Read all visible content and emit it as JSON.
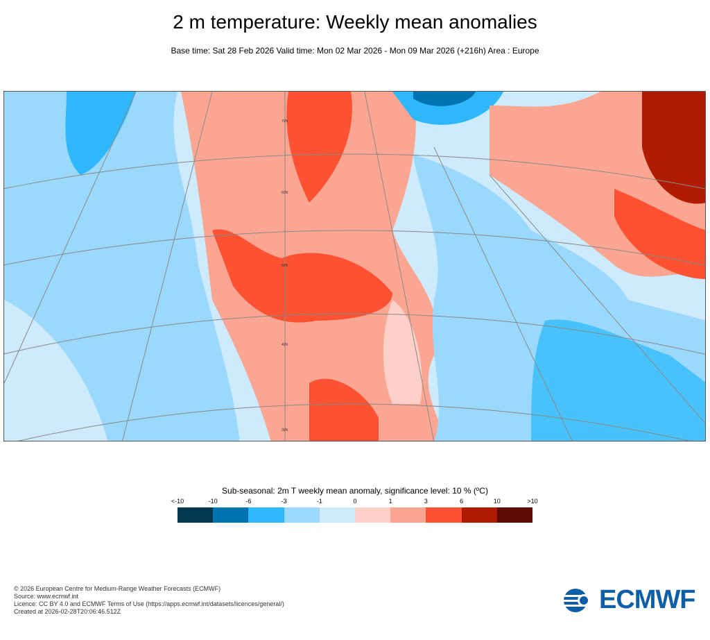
{
  "header": {
    "title": "2 m temperature: Weekly mean anomalies",
    "subtitle": "Base time: Sat 28 Feb 2026 Valid time: Mon 02 Mar 2026 - Mon 09 Mar 2026 (+216h) Area : Europe"
  },
  "map": {
    "lat_labels": [
      "70N",
      "60N",
      "50N",
      "40N",
      "30N"
    ]
  },
  "legend": {
    "title": "Sub-seasonal: 2m T weekly mean anomaly, significance level: 10 % (ºC)",
    "ticks": [
      "<-10",
      "-10",
      "-6",
      "-3",
      "-1",
      "0",
      "1",
      "3",
      "6",
      "10",
      ">10"
    ],
    "colors": [
      "#00384f",
      "#0073b0",
      "#2eb8fb",
      "#9bd9fc",
      "#cdebfc",
      "#fdd1ca",
      "#fba593",
      "#fc5133",
      "#b01c03",
      "#5c0c03"
    ]
  },
  "footer": {
    "lines": [
      "© 2026 European Centre for Medium-Range Weather Forecasts (ECMWF)",
      "Source: www.ecmwf.int",
      "Licence: CC BY 4.0 and ECMWF Terms of Use (https://apps.ecmwf.int/datasets/licences/general/)",
      "Created at 2026-02-28T20:06:46.512Z"
    ],
    "logo": "ECMWF"
  }
}
